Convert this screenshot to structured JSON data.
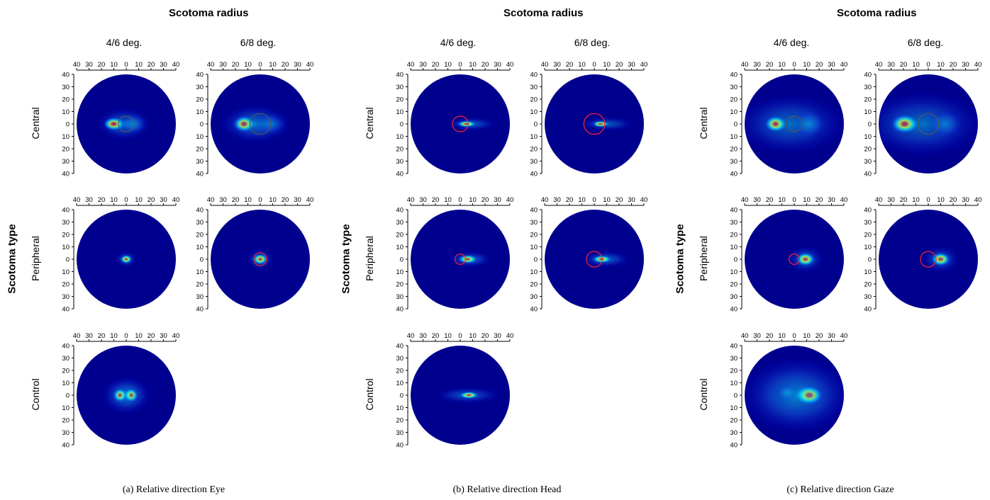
{
  "chart_data": [
    {
      "type": "heatmap",
      "caption": "(a) Relative direction Eye",
      "column_title": "Scotoma radius",
      "row_title": "Scotoma type",
      "columns": [
        "4/6 deg.",
        "6/8 deg."
      ],
      "rows": [
        "Central",
        "Peripheral",
        "Control"
      ],
      "x_ticks": [
        "40",
        "30",
        "20",
        "10",
        "0",
        "10",
        "20",
        "30",
        "40"
      ],
      "y_ticks": [
        "40",
        "30",
        "20",
        "10",
        "0",
        "10",
        "20",
        "30",
        "40"
      ],
      "xlim": [
        -40,
        40
      ],
      "ylim": [
        -40,
        40
      ],
      "colormap": [
        "#00008f",
        "#0000ff",
        "#00ffff",
        "#ffff00",
        "#ff0000",
        "#800000"
      ],
      "panels": [
        {
          "row": "Central",
          "column": "4/6 deg.",
          "scotoma_radius_deg": 6,
          "scotoma_color": "#555555",
          "hotspots": [
            {
              "x": -10,
              "y": 0,
              "sx": 4,
              "sy": 2.5,
              "a": 1.0
            },
            {
              "x": -2,
              "y": 0,
              "sx": 10,
              "sy": 6,
              "a": 0.45
            },
            {
              "x": 6,
              "y": 0,
              "sx": 5,
              "sy": 4,
              "a": 0.4
            }
          ]
        },
        {
          "row": "Central",
          "column": "6/8 deg.",
          "scotoma_radius_deg": 8,
          "scotoma_color": "#555555",
          "hotspots": [
            {
              "x": -13,
              "y": 0,
              "sx": 4,
              "sy": 3,
              "a": 1.0
            },
            {
              "x": -4,
              "y": 0,
              "sx": 13,
              "sy": 7,
              "a": 0.5
            },
            {
              "x": 9,
              "y": 0,
              "sx": 6,
              "sy": 4,
              "a": 0.35
            }
          ]
        },
        {
          "row": "Peripheral",
          "column": "4/6 deg.",
          "scotoma_radius_deg": 0,
          "scotoma_color": "#ff2020",
          "hotspots": [
            {
              "x": 0,
              "y": 0,
              "sx": 2.2,
              "sy": 1.6,
              "a": 1.0
            },
            {
              "x": 0,
              "y": 0,
              "sx": 4,
              "sy": 3,
              "a": 0.4
            }
          ]
        },
        {
          "row": "Peripheral",
          "column": "6/8 deg.",
          "scotoma_radius_deg": 5,
          "scotoma_color": "#ff2020",
          "hotspots": [
            {
              "x": 0,
              "y": 0,
              "sx": 2.8,
              "sy": 2,
              "a": 1.0
            },
            {
              "x": 0,
              "y": 0,
              "sx": 5,
              "sy": 4,
              "a": 0.4
            }
          ]
        },
        {
          "row": "Control",
          "column": "4/6 deg.",
          "scotoma_radius_deg": 0,
          "scotoma_color": "#ff2020",
          "hotspots": [
            {
              "x": -5,
              "y": 0,
              "sx": 2.5,
              "sy": 2.5,
              "a": 1.0
            },
            {
              "x": 4,
              "y": 0,
              "sx": 2.5,
              "sy": 2.5,
              "a": 0.95
            },
            {
              "x": 0,
              "y": 0,
              "sx": 9,
              "sy": 7,
              "a": 0.55
            }
          ]
        }
      ]
    },
    {
      "type": "heatmap",
      "caption": "(b) Relative direction Head",
      "column_title": "Scotoma radius",
      "row_title": "Scotoma type",
      "columns": [
        "4/6 deg.",
        "6/8 deg."
      ],
      "rows": [
        "Central",
        "Peripheral",
        "Control"
      ],
      "x_ticks": [
        "40",
        "30",
        "20",
        "10",
        "0",
        "10",
        "20",
        "30",
        "40"
      ],
      "y_ticks": [
        "40",
        "30",
        "20",
        "10",
        "0",
        "10",
        "20",
        "30",
        "40"
      ],
      "xlim": [
        -40,
        40
      ],
      "ylim": [
        -40,
        40
      ],
      "colormap": [
        "#00008f",
        "#0000ff",
        "#00ffff",
        "#ffff00",
        "#ff0000",
        "#800000"
      ],
      "panels": [
        {
          "row": "Central",
          "column": "4/6 deg.",
          "scotoma_radius_deg": 6,
          "scotoma_color": "#ff2020",
          "hotspots": [
            {
              "x": 5,
              "y": 0,
              "sx": 3.5,
              "sy": 1.2,
              "a": 1.0
            },
            {
              "x": 9,
              "y": 0,
              "sx": 9,
              "sy": 2.5,
              "a": 0.4
            }
          ]
        },
        {
          "row": "Central",
          "column": "6/8 deg.",
          "scotoma_radius_deg": 8,
          "scotoma_color": "#ff2020",
          "hotspots": [
            {
              "x": 5,
              "y": 0,
              "sx": 3,
              "sy": 1.2,
              "a": 1.0
            },
            {
              "x": 10,
              "y": 0,
              "sx": 10,
              "sy": 2.5,
              "a": 0.4
            }
          ]
        },
        {
          "row": "Peripheral",
          "column": "4/6 deg.",
          "scotoma_radius_deg": 4,
          "scotoma_color": "#ff2020",
          "hotspots": [
            {
              "x": 6,
              "y": 0,
              "sx": 3.5,
              "sy": 1.6,
              "a": 1.0
            },
            {
              "x": 8,
              "y": 0,
              "sx": 8,
              "sy": 3,
              "a": 0.45
            }
          ]
        },
        {
          "row": "Peripheral",
          "column": "6/8 deg.",
          "scotoma_radius_deg": 6,
          "scotoma_color": "#ff2020",
          "hotspots": [
            {
              "x": 6,
              "y": 0,
              "sx": 3.5,
              "sy": 1.4,
              "a": 1.0
            },
            {
              "x": 9,
              "y": 0,
              "sx": 9,
              "sy": 3,
              "a": 0.45
            }
          ]
        },
        {
          "row": "Control",
          "column": "4/6 deg.",
          "scotoma_radius_deg": 0,
          "scotoma_color": "#ff2020",
          "hotspots": [
            {
              "x": 7,
              "y": 0,
              "sx": 3.5,
              "sy": 1.3,
              "a": 1.0
            },
            {
              "x": 6,
              "y": 0,
              "sx": 12,
              "sy": 3,
              "a": 0.4
            }
          ]
        }
      ]
    },
    {
      "type": "heatmap",
      "caption": "(c) Relative direction Gaze",
      "column_title": "Scotoma radius",
      "row_title": "Scotoma type",
      "columns": [
        "4/6 deg.",
        "6/8 deg."
      ],
      "rows": [
        "Central",
        "Peripheral",
        "Control"
      ],
      "x_ticks": [
        "40",
        "30",
        "20",
        "10",
        "0",
        "10",
        "20",
        "30",
        "40"
      ],
      "y_ticks": [
        "40",
        "30",
        "20",
        "10",
        "0",
        "10",
        "20",
        "30",
        "40"
      ],
      "xlim": [
        -40,
        40
      ],
      "ylim": [
        -40,
        40
      ],
      "colormap": [
        "#00008f",
        "#0000ff",
        "#00ffff",
        "#ffff00",
        "#ff0000",
        "#800000"
      ],
      "panels": [
        {
          "row": "Central",
          "column": "4/6 deg.",
          "scotoma_radius_deg": 6,
          "scotoma_color": "#555555",
          "hotspots": [
            {
              "x": -15,
              "y": 0,
              "sx": 4,
              "sy": 3,
              "a": 1.0
            },
            {
              "x": -3,
              "y": 0,
              "sx": 20,
              "sy": 11,
              "a": 0.45
            },
            {
              "x": 12,
              "y": 0,
              "sx": 6,
              "sy": 5,
              "a": 0.4
            }
          ]
        },
        {
          "row": "Central",
          "column": "6/8 deg.",
          "scotoma_radius_deg": 8,
          "scotoma_color": "#555555",
          "hotspots": [
            {
              "x": -19,
              "y": 0,
              "sx": 5,
              "sy": 3.5,
              "a": 1.0
            },
            {
              "x": -5,
              "y": 0,
              "sx": 22,
              "sy": 12,
              "a": 0.45
            },
            {
              "x": 14,
              "y": 0,
              "sx": 6,
              "sy": 5,
              "a": 0.35
            }
          ]
        },
        {
          "row": "Peripheral",
          "column": "4/6 deg.",
          "scotoma_radius_deg": 4,
          "scotoma_color": "#ff2020",
          "hotspots": [
            {
              "x": 9,
              "y": 0,
              "sx": 3.5,
              "sy": 2.5,
              "a": 1.0
            },
            {
              "x": 9,
              "y": 0,
              "sx": 7,
              "sy": 5,
              "a": 0.4
            }
          ]
        },
        {
          "row": "Peripheral",
          "column": "6/8 deg.",
          "scotoma_radius_deg": 6,
          "scotoma_color": "#ff2020",
          "hotspots": [
            {
              "x": 10,
              "y": 0,
              "sx": 3.5,
              "sy": 2.5,
              "a": 1.0
            },
            {
              "x": 10,
              "y": 0,
              "sx": 7,
              "sy": 5,
              "a": 0.4
            }
          ]
        },
        {
          "row": "Control",
          "column": "4/6 deg.",
          "scotoma_radius_deg": 0,
          "scotoma_color": "#ff2020",
          "hotspots": [
            {
              "x": 12,
              "y": 0,
              "sx": 5,
              "sy": 3.5,
              "a": 1.0
            },
            {
              "x": 2,
              "y": 0,
              "sx": 20,
              "sy": 14,
              "a": 0.55
            },
            {
              "x": -6,
              "y": 2,
              "sx": 4,
              "sy": 3,
              "a": 0.3
            }
          ]
        }
      ]
    }
  ]
}
